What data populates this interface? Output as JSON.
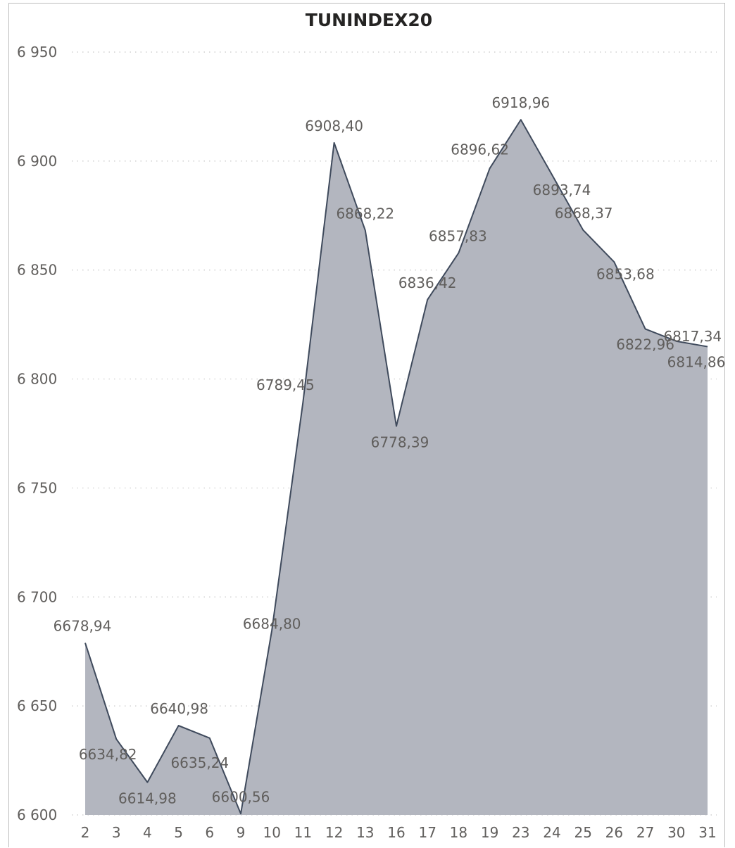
{
  "chart_data": {
    "type": "area",
    "title": "TUNINDEX20",
    "xlabel": "",
    "ylabel": "",
    "ylim": [
      6600,
      6950
    ],
    "yticks": [
      6600,
      6650,
      6700,
      6750,
      6800,
      6850,
      6900,
      6950
    ],
    "ytick_labels": [
      "6 600",
      "6 650",
      "6 700",
      "6 750",
      "6 800",
      "6 850",
      "6 900",
      "6 950"
    ],
    "grid": true,
    "colors": {
      "fill": "#b3b6bf",
      "line": "#3f4a5c"
    },
    "categories": [
      "2",
      "3",
      "4",
      "5",
      "6",
      "9",
      "10",
      "11",
      "12",
      "13",
      "16",
      "17",
      "18",
      "19",
      "23",
      "24",
      "25",
      "26",
      "27",
      "30",
      "31"
    ],
    "values": [
      6678.94,
      6634.82,
      6614.98,
      6640.98,
      6635.24,
      6600.56,
      6684.8,
      6789.45,
      6908.4,
      6868.22,
      6778.39,
      6836.42,
      6857.83,
      6896.62,
      6918.96,
      6893.74,
      6868.37,
      6853.68,
      6822.96,
      6817.34,
      6814.86
    ],
    "data_labels": [
      "6678,94",
      "6634,82",
      "6614,98",
      "6640,98",
      "6635,24",
      "6600,56",
      "6684,80",
      "6789,45",
      "6908,40",
      "6868,22",
      "6778,39",
      "6836,42",
      "6857,83",
      "6896,62",
      "6918,96",
      "6893,74",
      "6868,37",
      "6853,68",
      "6822,96",
      "6817,34",
      "6814,86"
    ]
  }
}
